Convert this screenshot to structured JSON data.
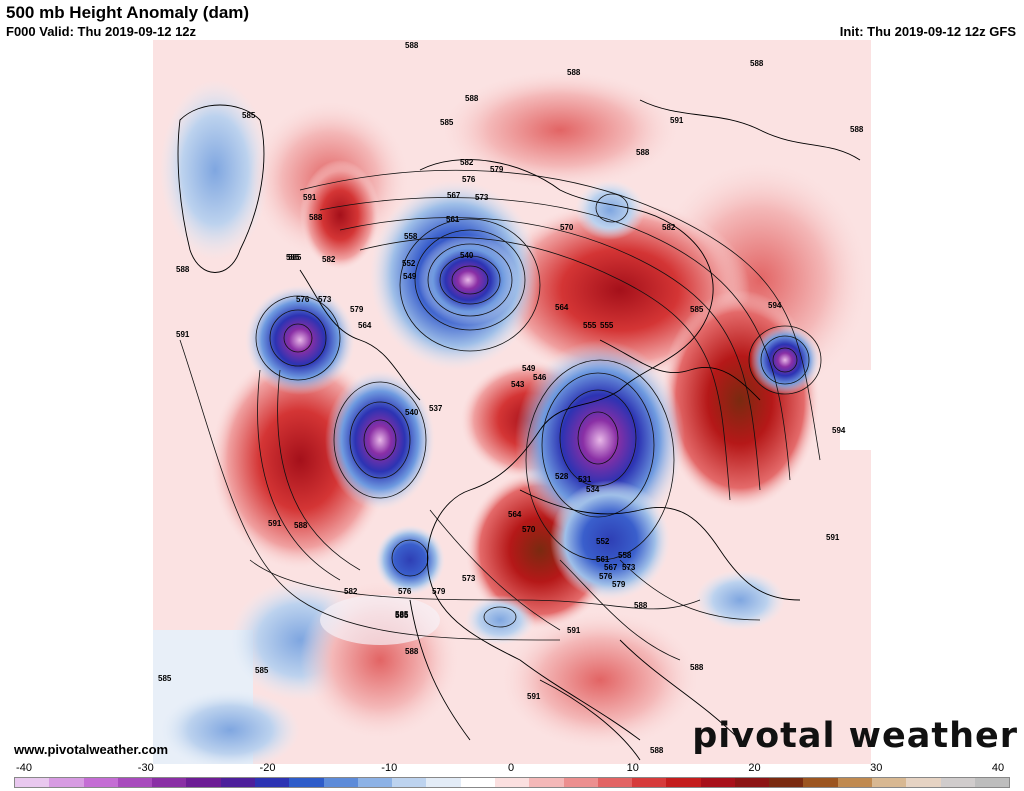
{
  "header": {
    "title": "500 mb Height Anomaly (dam)",
    "valid": "F000 Valid: Thu 2019-09-12 12z",
    "init": "Init: Thu 2019-09-12 12z GFS"
  },
  "footer": {
    "url": "www.pivotalweather.com",
    "brand": "pivotal weather"
  },
  "colorbar": {
    "ticks": [
      "-40",
      "-30",
      "-20",
      "-10",
      "0",
      "10",
      "20",
      "30",
      "40"
    ],
    "colors": [
      "#e9c8ef",
      "#d79be2",
      "#c46dd4",
      "#a84bbd",
      "#8a2fa5",
      "#6d1d95",
      "#4d1f9b",
      "#2c33b3",
      "#2e5cc9",
      "#5d8bd9",
      "#8db2e6",
      "#bdd3ef",
      "#e3ecf7",
      "#ffffff",
      "#fbe0e0",
      "#f4b8b8",
      "#ec8f8f",
      "#e26464",
      "#d63b3b",
      "#c41d1d",
      "#a8101a",
      "#8c1414",
      "#7a2a10",
      "#9c5520",
      "#c08a50",
      "#d8b892",
      "#e6d3c3",
      "#d0cccc",
      "#bdbdbd"
    ]
  },
  "contour_labels": [
    "588",
    "588",
    "588",
    "585",
    "585",
    "591",
    "588",
    "585",
    "582",
    "579",
    "576",
    "573",
    "567",
    "564",
    "561",
    "558",
    "555",
    "552",
    "549",
    "540",
    "591",
    "588",
    "585",
    "582",
    "579",
    "576",
    "573",
    "570",
    "564",
    "594",
    "591",
    "594",
    "591",
    "588",
    "588",
    "588",
    "585",
    "582",
    "579",
    "576",
    "573",
    "570",
    "567",
    "564",
    "561",
    "558",
    "555",
    "552",
    "549",
    "546",
    "543",
    "540",
    "537",
    "534",
    "531",
    "528",
    "588",
    "588",
    "585",
    "582",
    "579",
    "576",
    "573",
    "591",
    "591",
    "588",
    "585",
    "585",
    "588",
    "591",
    "588",
    "585"
  ]
}
